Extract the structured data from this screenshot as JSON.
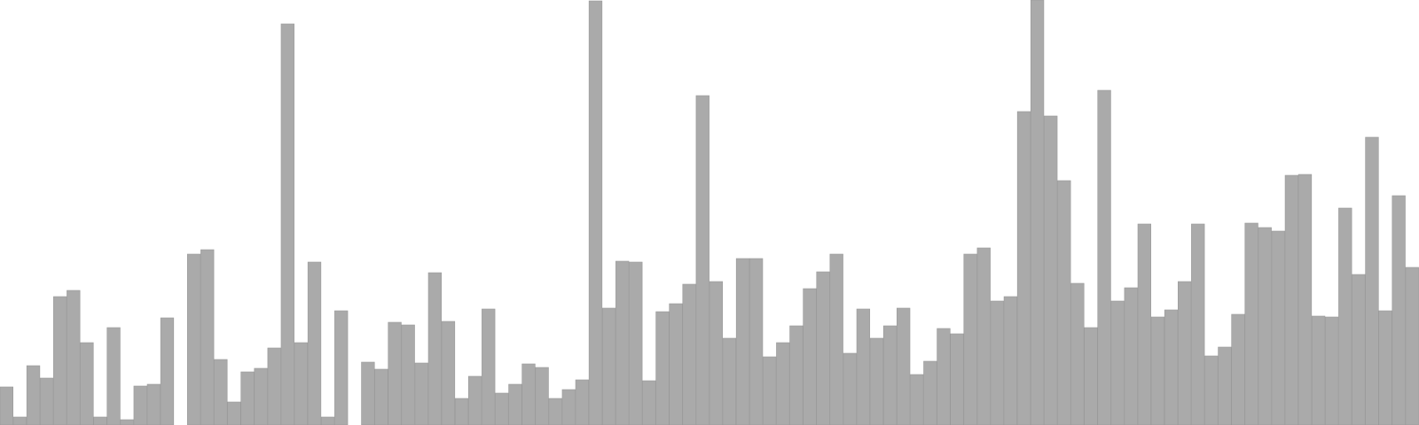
{
  "chart_data": {
    "type": "bar",
    "colors": {
      "bar": "#aaaaaa",
      "bar_edge": "#999999",
      "background": "#ffffff"
    },
    "grid": false,
    "legend": "none",
    "ylim": [
      0,
      480
    ],
    "values": [
      43,
      9,
      67,
      53,
      145,
      152,
      93,
      9,
      110,
      6,
      44,
      46,
      121,
      0,
      193,
      198,
      74,
      26,
      60,
      64,
      87,
      453,
      93,
      184,
      9,
      129,
      0,
      71,
      63,
      116,
      113,
      70,
      172,
      117,
      30,
      55,
      131,
      36,
      46,
      69,
      65,
      30,
      40,
      51,
      479,
      132,
      185,
      184,
      50,
      128,
      137,
      159,
      372,
      162,
      98,
      188,
      188,
      77,
      93,
      112,
      154,
      173,
      193,
      81,
      131,
      98,
      112,
      132,
      57,
      72,
      109,
      103,
      193,
      200,
      140,
      145,
      354,
      480,
      349,
      276,
      160,
      110,
      378,
      140,
      155,
      227,
      122,
      130,
      162,
      227,
      78,
      88,
      125,
      228,
      223,
      219,
      282,
      283,
      123,
      122,
      245,
      170,
      325,
      129,
      259,
      178
    ]
  }
}
